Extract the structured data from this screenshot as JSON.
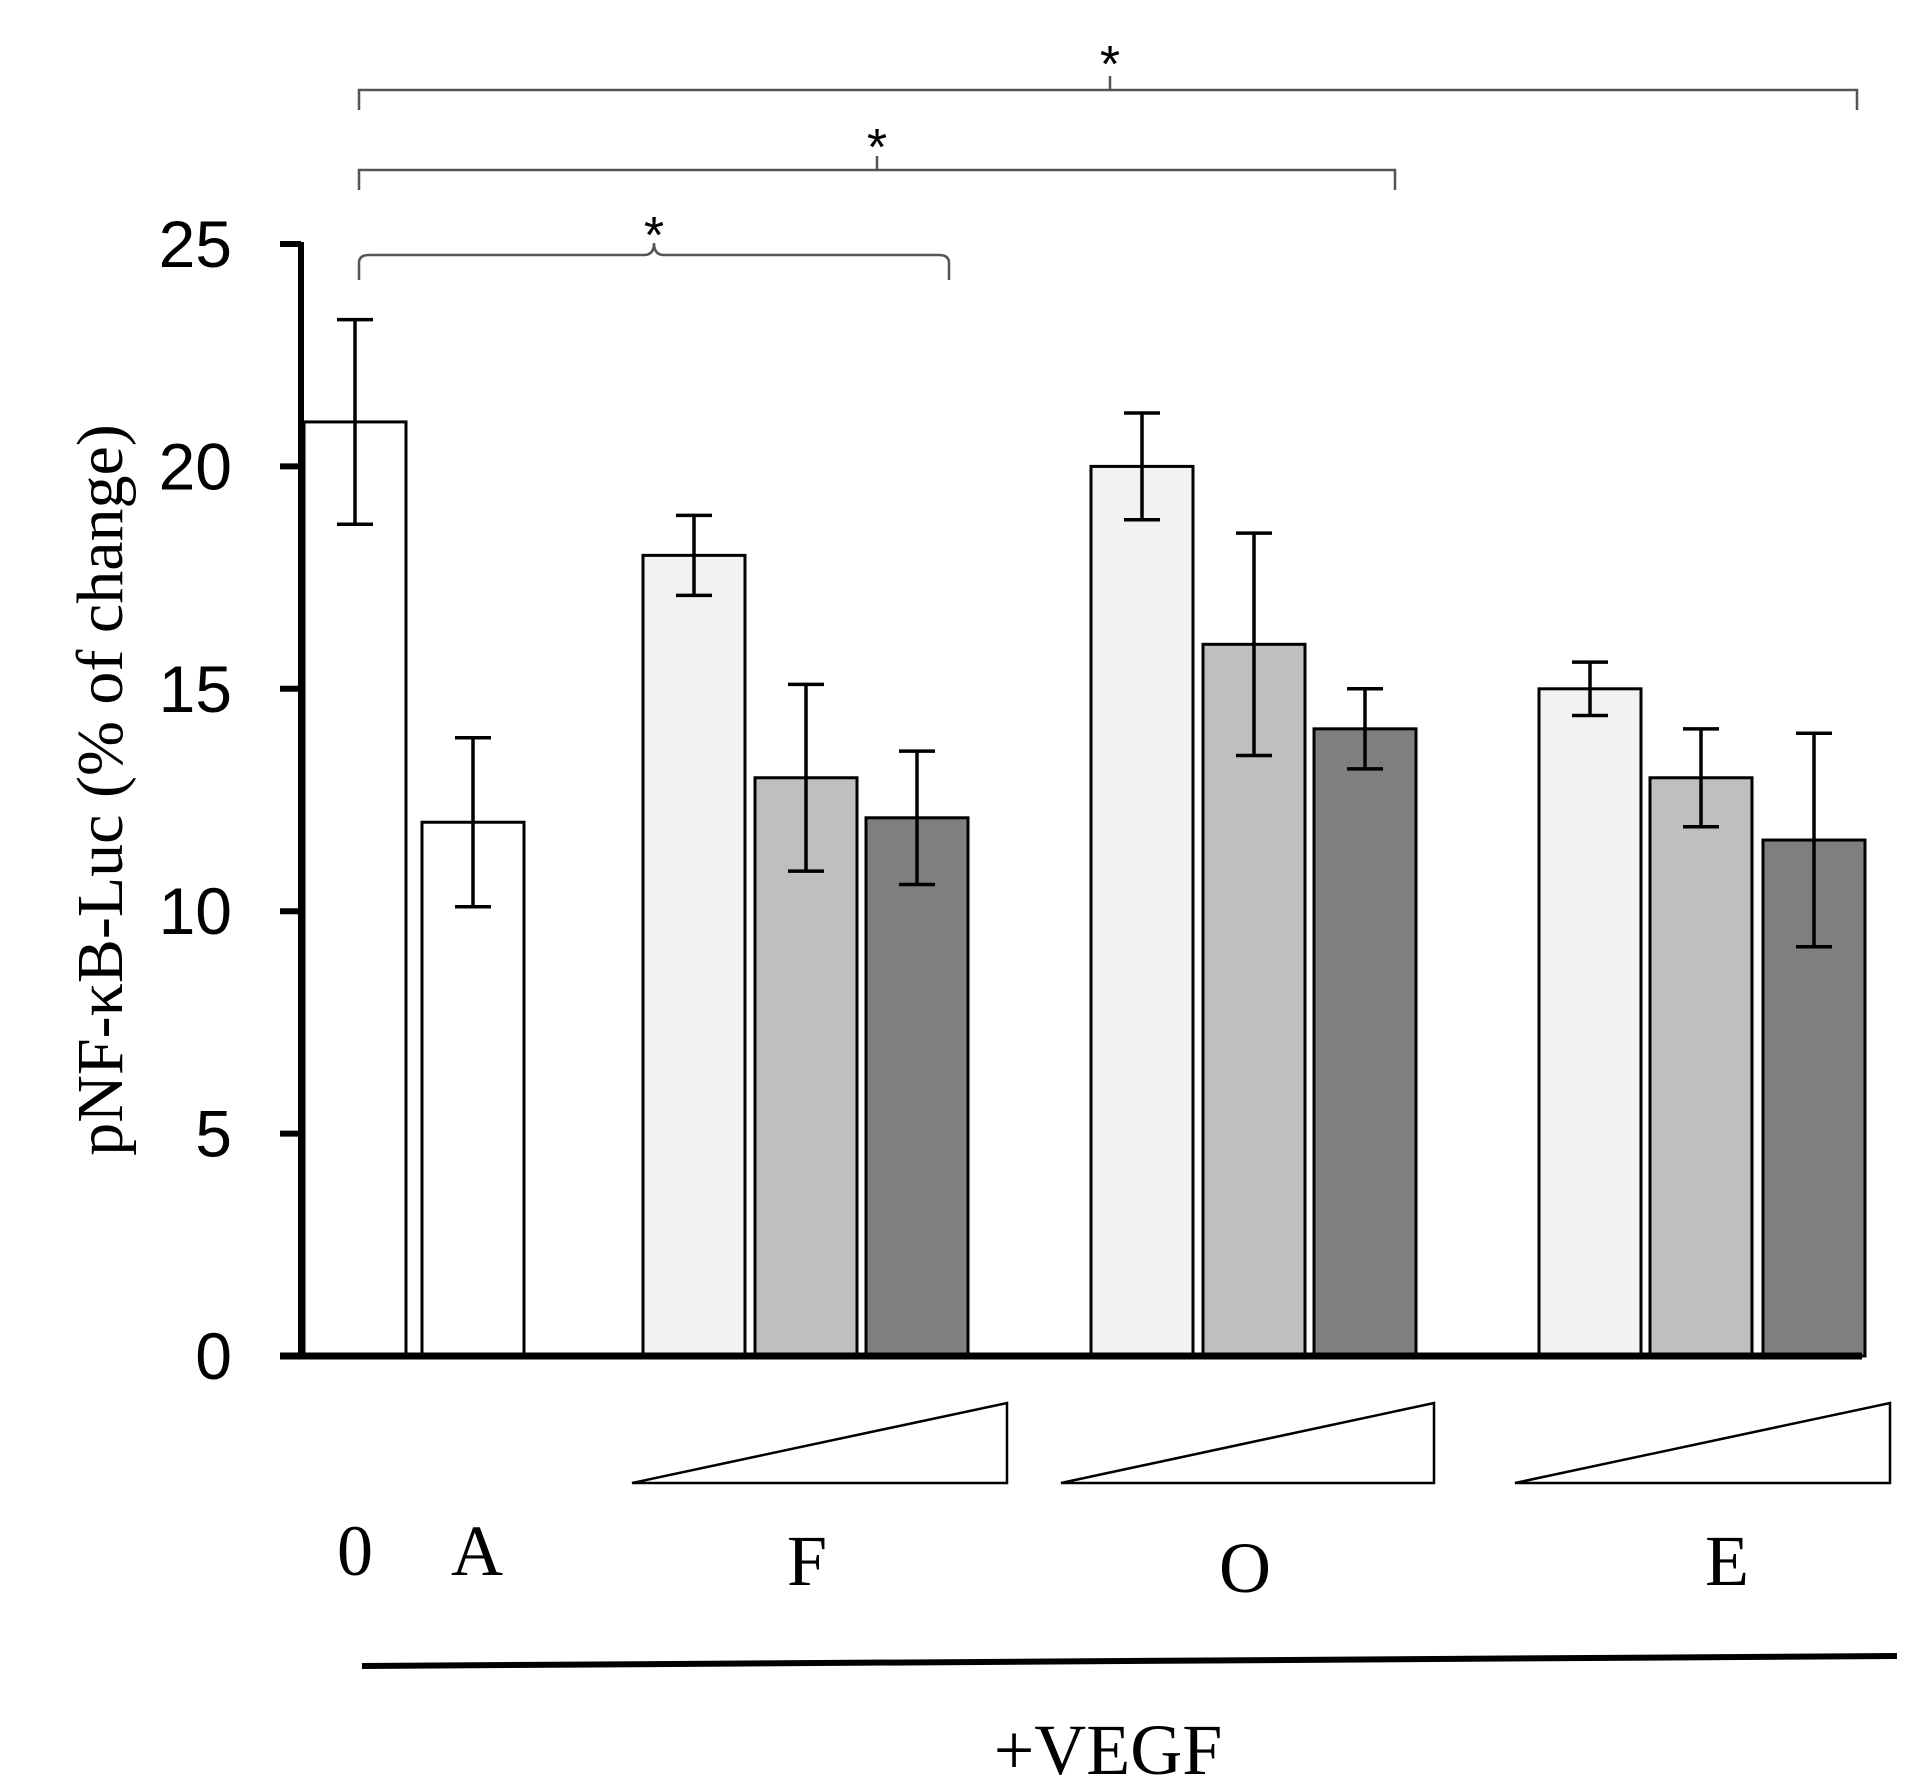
{
  "chart_data": {
    "type": "bar",
    "ylabel": "pNF-κB-Luc (% of change)",
    "ylim": [
      0,
      25
    ],
    "yticks": [
      0,
      5,
      10,
      15,
      20,
      25
    ],
    "bars": [
      {
        "group": "0",
        "value": 21.0,
        "error": 2.3,
        "color": "#ffffff"
      },
      {
        "group": "A",
        "value": 12.0,
        "error": 1.9,
        "color": "#ffffff"
      },
      {
        "group": "F",
        "value": 18.0,
        "error": 0.9,
        "color": "#f2f2f2"
      },
      {
        "group": "F",
        "value": 13.0,
        "error": 2.1,
        "color": "#bfbfbf"
      },
      {
        "group": "F",
        "value": 12.1,
        "error": 1.5,
        "color": "#7f7f7f"
      },
      {
        "group": "O",
        "value": 20.0,
        "error": 1.2,
        "color": "#f2f2f2"
      },
      {
        "group": "O",
        "value": 16.0,
        "error": 2.5,
        "color": "#bfbfbf"
      },
      {
        "group": "O",
        "value": 14.1,
        "error": 0.9,
        "color": "#7f7f7f"
      },
      {
        "group": "E",
        "value": 15.0,
        "error": 0.6,
        "color": "#f2f2f2"
      },
      {
        "group": "E",
        "value": 13.0,
        "error": 1.1,
        "color": "#bfbfbf"
      },
      {
        "group": "E",
        "value": 11.6,
        "error": 2.4,
        "color": "#7f7f7f"
      }
    ],
    "group_labels": [
      "0",
      "A",
      "F",
      "O",
      "E"
    ],
    "dose_triangles": [
      "F",
      "O",
      "E"
    ],
    "treatment_label": "+VEGF",
    "significance": [
      {
        "from": "0",
        "to": "F",
        "label": "*"
      },
      {
        "from": "0",
        "to": "O",
        "label": "*"
      },
      {
        "from": "0",
        "to": "E",
        "label": "*"
      }
    ]
  }
}
